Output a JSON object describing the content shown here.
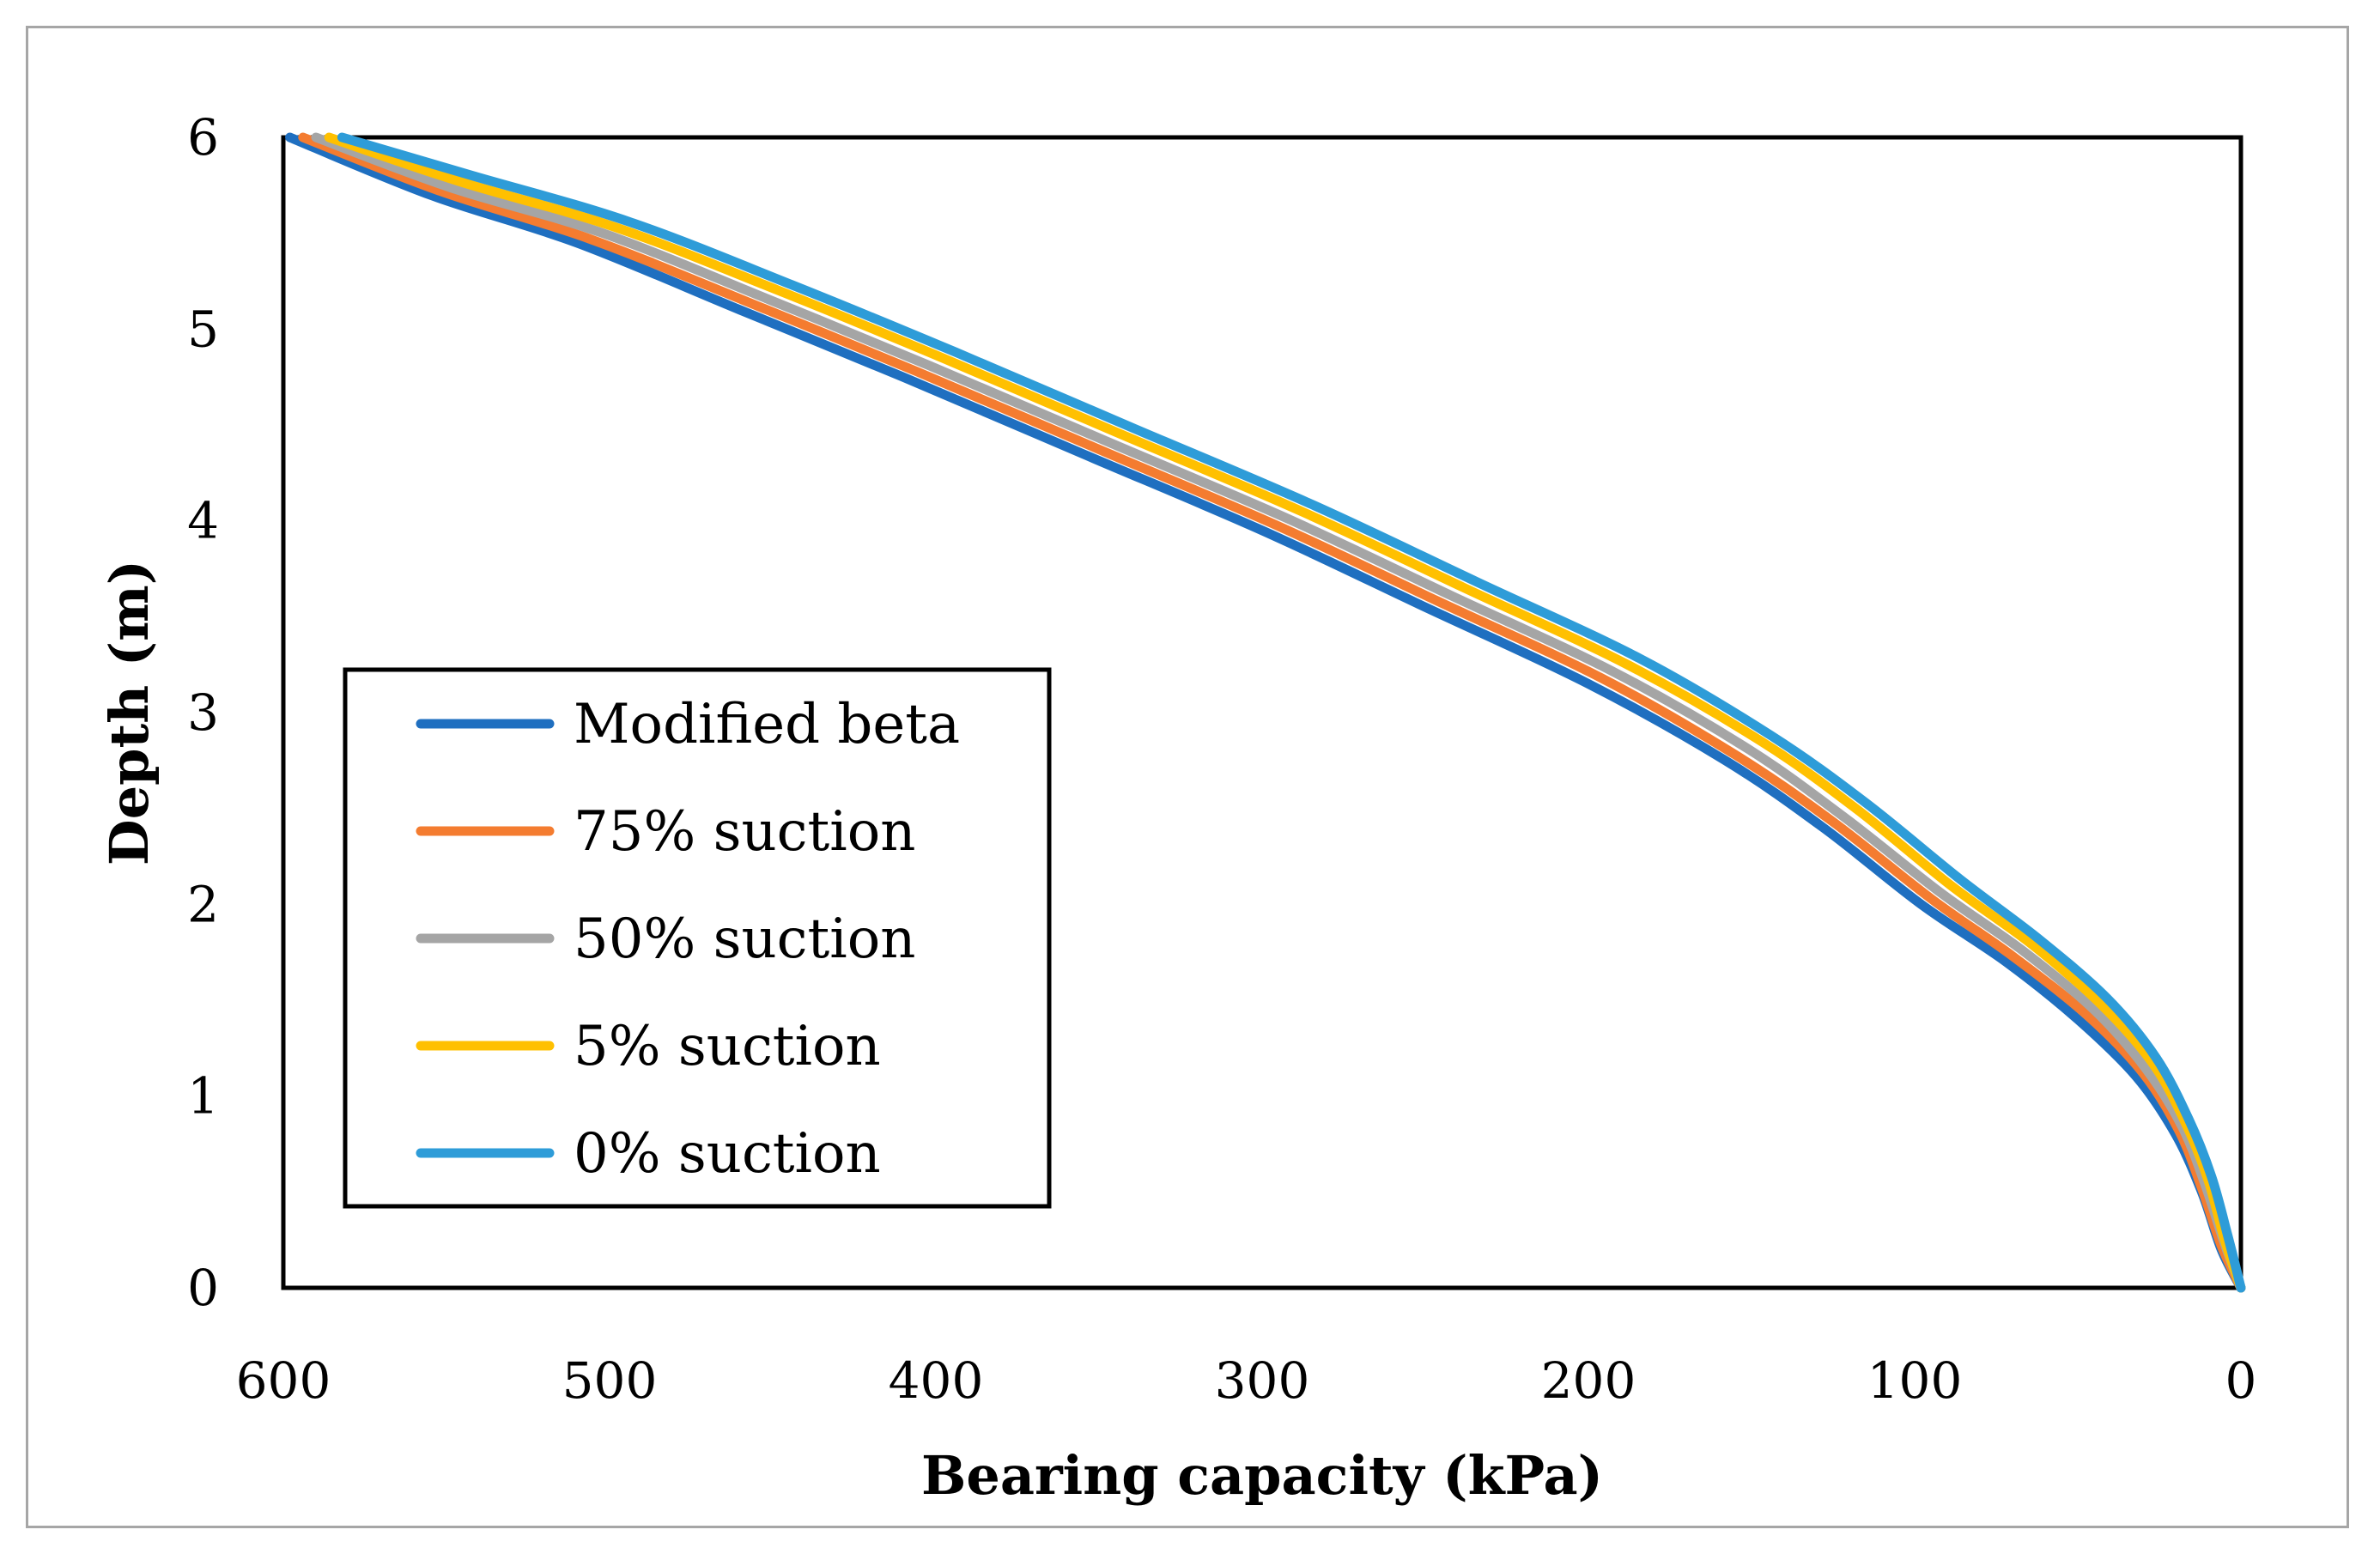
{
  "chart_data": {
    "type": "line",
    "title": "",
    "xlabel": "Bearing capacity (kPa)",
    "ylabel": "Depth (m)",
    "xlim": [
      600,
      0
    ],
    "ylim": [
      0,
      6
    ],
    "x_reversed": true,
    "xticks": [
      600,
      500,
      400,
      300,
      200,
      100,
      0
    ],
    "yticks": [
      0,
      1,
      2,
      3,
      4,
      5,
      6
    ],
    "grid": false,
    "legend_position": "lower-left",
    "series": [
      {
        "name": "Modified beta",
        "color": "#1f6fc0",
        "points": [
          [
            0,
            0
          ],
          [
            6,
            0.2
          ],
          [
            12,
            0.5
          ],
          [
            20,
            0.8
          ],
          [
            32,
            1.1
          ],
          [
            50,
            1.4
          ],
          [
            72,
            1.7
          ],
          [
            98,
            2.0
          ],
          [
            128,
            2.4
          ],
          [
            158,
            2.75
          ],
          [
            200,
            3.15
          ],
          [
            250,
            3.55
          ],
          [
            300,
            3.95
          ],
          [
            355,
            4.35
          ],
          [
            410,
            4.75
          ],
          [
            460,
            5.1
          ],
          [
            510,
            5.45
          ],
          [
            555,
            5.7
          ],
          [
            598,
            6.0
          ]
        ]
      },
      {
        "name": "75% suction",
        "color": "#f47c30",
        "points": [
          [
            0,
            0
          ],
          [
            6,
            0.22
          ],
          [
            12,
            0.52
          ],
          [
            19,
            0.82
          ],
          [
            30,
            1.12
          ],
          [
            47,
            1.42
          ],
          [
            70,
            1.73
          ],
          [
            95,
            2.03
          ],
          [
            125,
            2.43
          ],
          [
            155,
            2.78
          ],
          [
            196,
            3.18
          ],
          [
            246,
            3.58
          ],
          [
            296,
            3.98
          ],
          [
            351,
            4.38
          ],
          [
            406,
            4.78
          ],
          [
            456,
            5.13
          ],
          [
            506,
            5.47
          ],
          [
            552,
            5.72
          ],
          [
            594,
            6.0
          ]
        ]
      },
      {
        "name": "50% suction",
        "color": "#a5a5a5",
        "points": [
          [
            0,
            0
          ],
          [
            5,
            0.23
          ],
          [
            11,
            0.54
          ],
          [
            18,
            0.84
          ],
          [
            29,
            1.14
          ],
          [
            45,
            1.45
          ],
          [
            67,
            1.76
          ],
          [
            92,
            2.06
          ],
          [
            122,
            2.46
          ],
          [
            151,
            2.81
          ],
          [
            192,
            3.21
          ],
          [
            242,
            3.61
          ],
          [
            292,
            4.01
          ],
          [
            347,
            4.41
          ],
          [
            402,
            4.81
          ],
          [
            452,
            5.16
          ],
          [
            502,
            5.5
          ],
          [
            549,
            5.74
          ],
          [
            590,
            6.0
          ]
        ]
      },
      {
        "name": "5% suction",
        "color": "#ffc000",
        "points": [
          [
            0,
            0
          ],
          [
            5,
            0.25
          ],
          [
            10,
            0.56
          ],
          [
            17,
            0.86
          ],
          [
            27,
            1.17
          ],
          [
            43,
            1.48
          ],
          [
            64,
            1.79
          ],
          [
            89,
            2.1
          ],
          [
            118,
            2.5
          ],
          [
            147,
            2.85
          ],
          [
            188,
            3.25
          ],
          [
            238,
            3.65
          ],
          [
            288,
            4.05
          ],
          [
            343,
            4.45
          ],
          [
            398,
            4.85
          ],
          [
            448,
            5.2
          ],
          [
            498,
            5.53
          ],
          [
            546,
            5.77
          ],
          [
            586,
            6.0
          ]
        ]
      },
      {
        "name": "0% suction",
        "color": "#2e9cd8",
        "points": [
          [
            0,
            0
          ],
          [
            4,
            0.27
          ],
          [
            9,
            0.58
          ],
          [
            16,
            0.88
          ],
          [
            26,
            1.2
          ],
          [
            41,
            1.51
          ],
          [
            62,
            1.82
          ],
          [
            86,
            2.13
          ],
          [
            115,
            2.53
          ],
          [
            144,
            2.88
          ],
          [
            184,
            3.28
          ],
          [
            234,
            3.68
          ],
          [
            284,
            4.08
          ],
          [
            339,
            4.48
          ],
          [
            394,
            4.88
          ],
          [
            444,
            5.23
          ],
          [
            494,
            5.56
          ],
          [
            542,
            5.8
          ],
          [
            582,
            6.0
          ]
        ]
      }
    ]
  }
}
